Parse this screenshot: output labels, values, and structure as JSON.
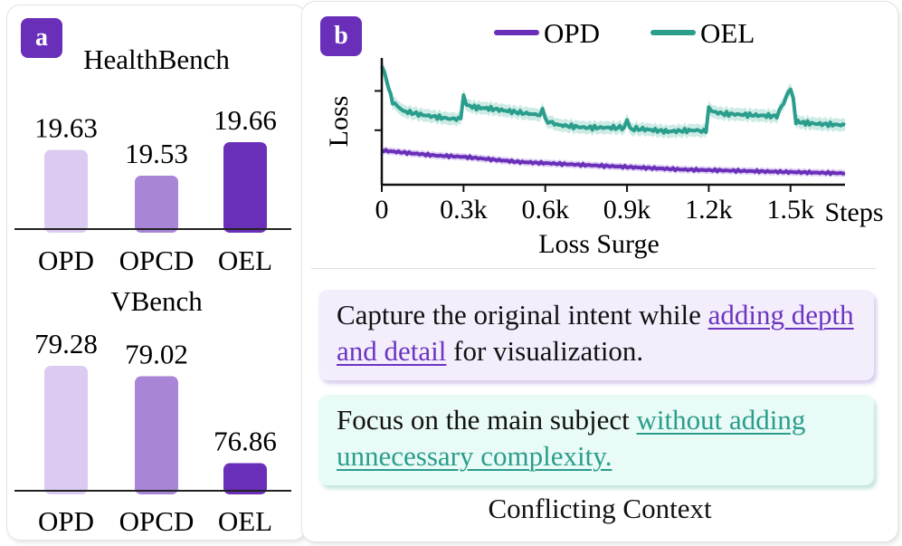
{
  "colors": {
    "opd": "#6a2fb9",
    "opd_light": "#dccbf0",
    "opcd": "#a885d6",
    "oel": "#2a9d8c",
    "oel_band": "#bfe6de",
    "opd_band": "#d6c6f0"
  },
  "panel_a": {
    "badge": "a",
    "charts": [
      {
        "title": "HealthBench",
        "chart_data": {
          "type": "bar",
          "categories": [
            "OPD",
            "OPCD",
            "OEL"
          ],
          "values": [
            19.63,
            19.53,
            19.66
          ],
          "value_labels": [
            "19.63",
            "19.53",
            "19.66"
          ],
          "ylim": [
            19.47,
            19.66
          ]
        }
      },
      {
        "title": "VBench",
        "chart_data": {
          "type": "bar",
          "categories": [
            "OPD",
            "OPCD",
            "OEL"
          ],
          "values": [
            79.28,
            79.02,
            76.86
          ],
          "value_labels": [
            "79.28",
            "79.02",
            "76.86"
          ],
          "ylim": [
            76.58,
            79.28
          ]
        }
      }
    ]
  },
  "panel_b": {
    "badge": "b",
    "chart_data": {
      "type": "line",
      "xlabel": "Loss Surge",
      "ylabel": "Loss",
      "x_end_label": "Steps",
      "x_ticks": [
        "0",
        "0.3k",
        "0.6k",
        "0.9k",
        "1.2k",
        "1.5k"
      ],
      "x_tick_values": [
        0,
        300,
        600,
        900,
        1200,
        1500
      ],
      "xlim": [
        0,
        1700
      ],
      "ylim": [
        0,
        1
      ],
      "legend": "top-center",
      "series": [
        {
          "name": "OPD",
          "x": [
            0,
            100,
            200,
            300,
            400,
            500,
            600,
            700,
            800,
            900,
            1000,
            1100,
            1200,
            1300,
            1400,
            1500,
            1600,
            1700
          ],
          "y": [
            0.27,
            0.25,
            0.23,
            0.22,
            0.2,
            0.18,
            0.17,
            0.16,
            0.15,
            0.14,
            0.13,
            0.12,
            0.115,
            0.11,
            0.105,
            0.1,
            0.095,
            0.09
          ]
        },
        {
          "name": "OEL",
          "x": [
            0,
            10,
            40,
            80,
            150,
            250,
            290,
            300,
            310,
            340,
            400,
            500,
            580,
            590,
            600,
            610,
            650,
            750,
            850,
            890,
            900,
            910,
            950,
            1050,
            1150,
            1190,
            1200,
            1210,
            1250,
            1350,
            1450,
            1500,
            1510,
            1520,
            1540,
            1600,
            1700
          ],
          "y": [
            0.93,
            0.88,
            0.65,
            0.58,
            0.55,
            0.52,
            0.52,
            0.71,
            0.63,
            0.61,
            0.6,
            0.57,
            0.55,
            0.6,
            0.53,
            0.5,
            0.47,
            0.45,
            0.45,
            0.45,
            0.5,
            0.44,
            0.44,
            0.42,
            0.43,
            0.42,
            0.62,
            0.58,
            0.56,
            0.55,
            0.54,
            0.76,
            0.7,
            0.5,
            0.49,
            0.48,
            0.47
          ]
        }
      ]
    },
    "context": {
      "opd": {
        "pre": "Capture the original intent while ",
        "highlight": "adding depth and detail",
        "post": " for visualization."
      },
      "oel": {
        "pre": "Focus on the main subject ",
        "highlight": "without adding unnecessary complexity.",
        "post": ""
      },
      "caption": "Conflicting Context"
    }
  }
}
